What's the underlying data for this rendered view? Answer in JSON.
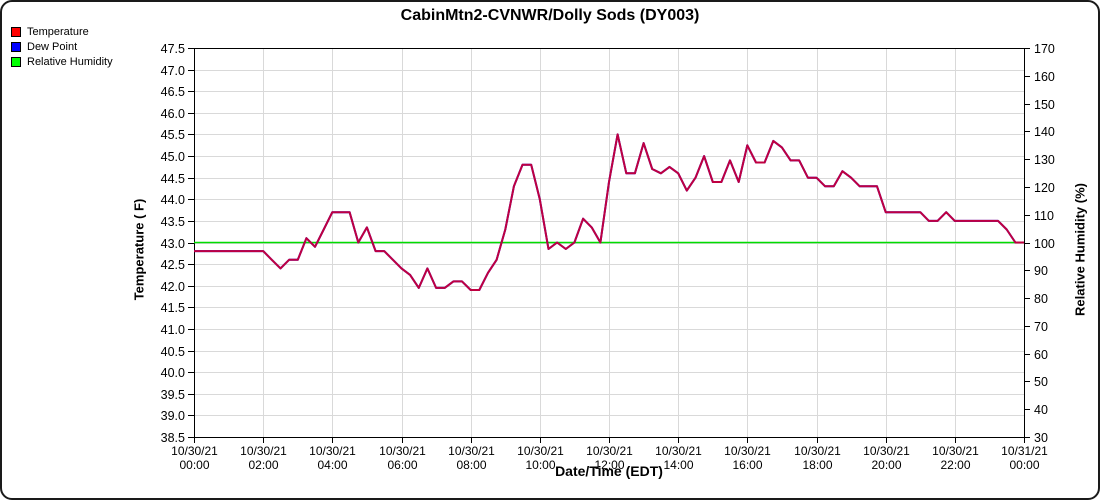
{
  "title": "CabinMtn2-CVNWR/Dolly Sods (DY003)",
  "legend": {
    "items": [
      {
        "label": "Temperature",
        "color": "#ff0000"
      },
      {
        "label": "Dew Point",
        "color": "#0000ff"
      },
      {
        "label": "Relative Humidity",
        "color": "#00ff00"
      }
    ]
  },
  "colors": {
    "temperature_line_visible_blend": "#bf0040",
    "dew_point_line": "#0000ff",
    "humidity_line": "#00dd00",
    "grid": "#d9d9d9",
    "axis": "#000000",
    "text": "#000000",
    "background": "#ffffff"
  },
  "chart_data": {
    "type": "line",
    "title": "CabinMtn2-CVNWR/Dolly Sods (DY003)",
    "xlabel": "Date/Time (EDT)",
    "ylabel_left": "Temperature ( F)",
    "ylabel_right": "Relative Humidity (%)",
    "grid": true,
    "legend_position": "top-left",
    "xlim": [
      0,
      24
    ],
    "x_interval_minutes": 15,
    "x_start_hour": 0,
    "x_step_hours": 0.25,
    "ylim_left": [
      38.5,
      47.5
    ],
    "ytick_step_left": 0.5,
    "ylim_right": [
      30,
      170
    ],
    "ytick_step_right": 10,
    "x_ticks": [
      {
        "h": 0,
        "date": "10/30/21",
        "time": "00:00"
      },
      {
        "h": 2,
        "date": "10/30/21",
        "time": "02:00"
      },
      {
        "h": 4,
        "date": "10/30/21",
        "time": "04:00"
      },
      {
        "h": 6,
        "date": "10/30/21",
        "time": "06:00"
      },
      {
        "h": 8,
        "date": "10/30/21",
        "time": "08:00"
      },
      {
        "h": 10,
        "date": "10/30/21",
        "time": "10:00"
      },
      {
        "h": 12,
        "date": "10/30/21",
        "time": "12:00"
      },
      {
        "h": 14,
        "date": "10/30/21",
        "time": "14:00"
      },
      {
        "h": 16,
        "date": "10/30/21",
        "time": "16:00"
      },
      {
        "h": 18,
        "date": "10/30/21",
        "time": "18:00"
      },
      {
        "h": 20,
        "date": "10/30/21",
        "time": "20:00"
      },
      {
        "h": 22,
        "date": "10/30/21",
        "time": "22:00"
      },
      {
        "h": 24,
        "date": "10/31/21",
        "time": "00:00"
      }
    ],
    "series": [
      {
        "name": "Temperature",
        "axis": "left",
        "unit": "F",
        "legend_color": "#ff0000",
        "line_color": "#bf0040",
        "note": "drawn over the identical Dew Point line, so it appears crimson",
        "values": [
          42.8,
          42.8,
          42.8,
          42.8,
          42.8,
          42.8,
          42.8,
          42.8,
          42.8,
          42.6,
          42.4,
          42.6,
          42.6,
          43.1,
          42.9,
          43.3,
          43.7,
          43.7,
          43.7,
          43.0,
          43.35,
          42.8,
          42.8,
          42.6,
          42.4,
          42.25,
          41.95,
          42.4,
          41.95,
          41.95,
          42.1,
          42.1,
          41.9,
          41.9,
          42.3,
          42.6,
          43.3,
          44.3,
          44.8,
          44.8,
          44.0,
          42.85,
          43.0,
          42.85,
          43.0,
          43.55,
          43.35,
          43.0,
          44.4,
          45.5,
          44.6,
          44.6,
          45.3,
          44.7,
          44.6,
          44.75,
          44.6,
          44.2,
          44.5,
          45.0,
          44.4,
          44.4,
          44.9,
          44.4,
          45.25,
          44.85,
          44.85,
          45.35,
          45.2,
          44.9,
          44.9,
          44.5,
          44.5,
          44.3,
          44.3,
          44.65,
          44.5,
          44.3,
          44.3,
          44.3,
          43.7,
          43.7,
          43.7,
          43.7,
          43.7,
          43.5,
          43.5,
          43.7,
          43.5,
          43.5,
          43.5,
          43.5,
          43.5,
          43.5,
          43.3,
          43.0,
          43.0
        ]
      },
      {
        "name": "Dew Point",
        "axis": "left",
        "unit": "F",
        "legend_color": "#0000ff",
        "line_color": "#0000ff",
        "note": "equal to Temperature (RH = 100%), hidden beneath the Temperature line",
        "values": [
          42.8,
          42.8,
          42.8,
          42.8,
          42.8,
          42.8,
          42.8,
          42.8,
          42.8,
          42.6,
          42.4,
          42.6,
          42.6,
          43.1,
          42.9,
          43.3,
          43.7,
          43.7,
          43.7,
          43.0,
          43.35,
          42.8,
          42.8,
          42.6,
          42.4,
          42.25,
          41.95,
          42.4,
          41.95,
          41.95,
          42.1,
          42.1,
          41.9,
          41.9,
          42.3,
          42.6,
          43.3,
          44.3,
          44.8,
          44.8,
          44.0,
          42.85,
          43.0,
          42.85,
          43.0,
          43.55,
          43.35,
          43.0,
          44.4,
          45.5,
          44.6,
          44.6,
          45.3,
          44.7,
          44.6,
          44.75,
          44.6,
          44.2,
          44.5,
          45.0,
          44.4,
          44.4,
          44.9,
          44.4,
          45.25,
          44.85,
          44.85,
          45.35,
          45.2,
          44.9,
          44.9,
          44.5,
          44.5,
          44.3,
          44.3,
          44.65,
          44.5,
          44.3,
          44.3,
          44.3,
          43.7,
          43.7,
          43.7,
          43.7,
          43.7,
          43.5,
          43.5,
          43.7,
          43.5,
          43.5,
          43.5,
          43.5,
          43.5,
          43.5,
          43.3,
          43.0,
          43.0
        ]
      },
      {
        "name": "Relative Humidity",
        "axis": "right",
        "unit": "%",
        "legend_color": "#00ff00",
        "line_color": "#00dd00",
        "constant": 100,
        "note": "flat line at 100% for the whole period"
      }
    ]
  }
}
